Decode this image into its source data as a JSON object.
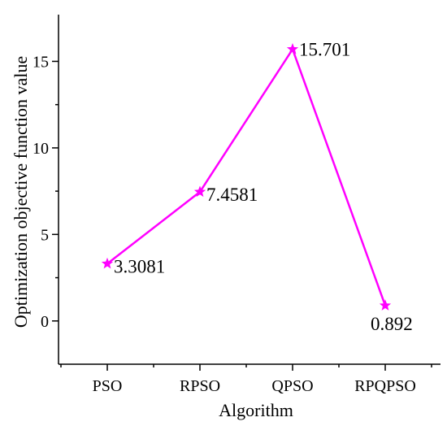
{
  "chart_data": {
    "type": "line",
    "categories": [
      "PSO",
      "RPSO",
      "QPSO",
      "RPQPSO"
    ],
    "series": [
      {
        "values": [
          3.3081,
          7.4581,
          15.701,
          0.892
        ],
        "color": "#ff00ff",
        "marker": "star"
      }
    ],
    "data_labels": [
      "3.3081",
      "7.4581",
      "15.701",
      "0.892"
    ],
    "xlabel": "Algorithm",
    "ylabel": "Optimization objective function value",
    "ylim": [
      -2.5,
      17.7
    ],
    "yticks": [
      0,
      5,
      10,
      15
    ],
    "ytick_labels": [
      "0",
      "5",
      "10",
      "15"
    ],
    "grid": false,
    "legend": false
  }
}
